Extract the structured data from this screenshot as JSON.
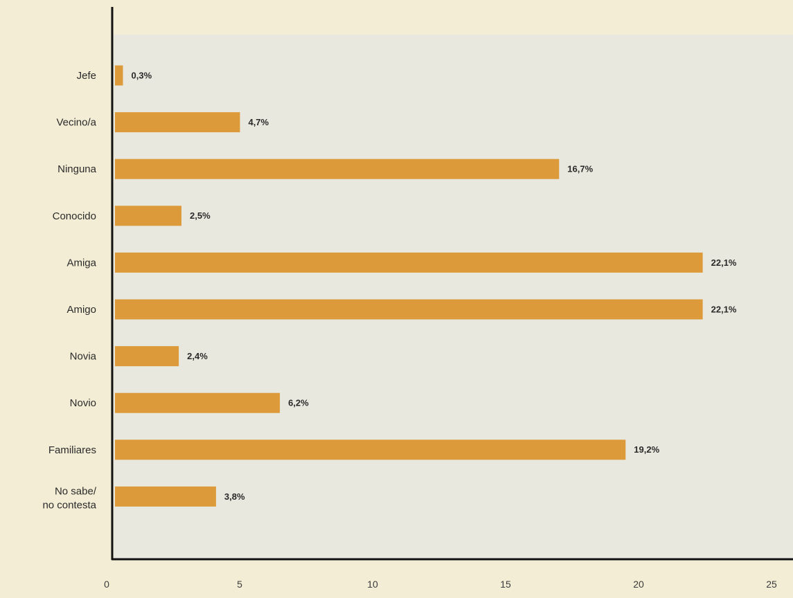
{
  "chart_data": {
    "type": "bar",
    "orientation": "horizontal",
    "categories": [
      "Jefe",
      "Vecino/a",
      "Ninguna",
      "Conocido",
      "Amiga",
      "Amigo",
      "Novia",
      "Novio",
      "Familiares",
      "No sabe/\nno contesta"
    ],
    "values": [
      0.3,
      4.7,
      16.7,
      2.5,
      22.1,
      22.1,
      2.4,
      6.2,
      19.2,
      3.8
    ],
    "data_labels": [
      "0,3%",
      "4,7%",
      "16,7%",
      "2,5%",
      "22,1%",
      "22,1%",
      "2,4%",
      "6,2%",
      "19,2%",
      "3,8%"
    ],
    "x_ticks": [
      0,
      5,
      10,
      15,
      20,
      25
    ],
    "x_tick_labels": [
      "0",
      "5",
      "10",
      "15",
      "20",
      "25"
    ],
    "xlim": [
      0,
      25
    ],
    "title": "",
    "xlabel": "",
    "ylabel": "",
    "grid": false,
    "colors": {
      "bar": "#dc9a3a",
      "plot_background": "#e8e8de",
      "page_background": "#f3edd5",
      "axis": "#111111"
    }
  }
}
